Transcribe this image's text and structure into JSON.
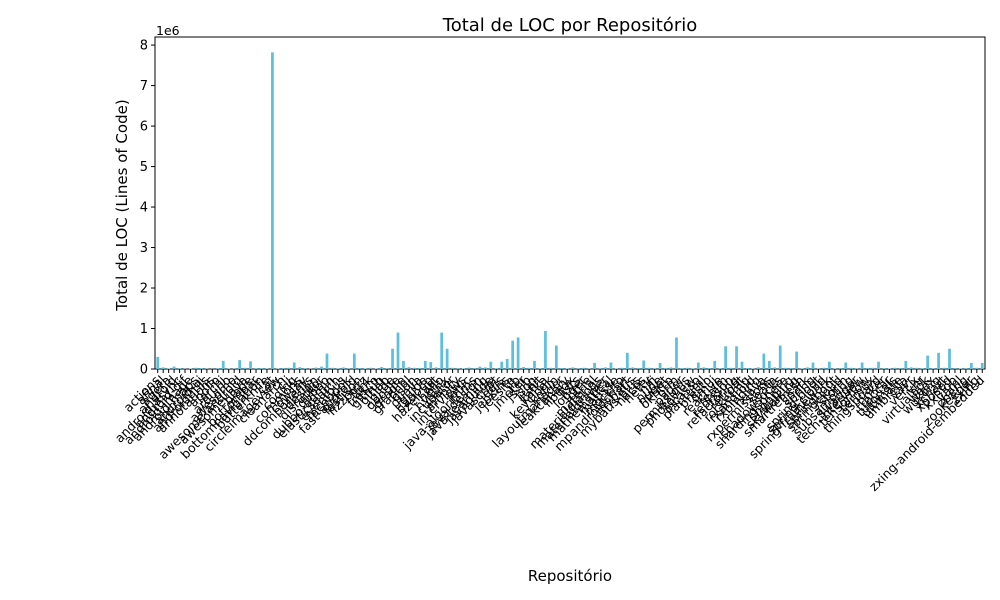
{
  "chart_data": {
    "type": "bar",
    "title": "Total de LOC por Repositório",
    "xlabel": "Repositório",
    "ylabel": "Total de LOC (Lines of Code)",
    "y_offset_text": "1e6",
    "y_scale_divisor": 1000000,
    "ylim": [
      0,
      8200000
    ],
    "yticks": [
      0,
      1,
      2,
      3,
      4,
      5,
      6,
      7,
      8
    ],
    "grid": false,
    "legend": "none",
    "bar_color": "#5bc0de",
    "categories": [
      "actions",
      "afinal",
      "agera",
      "android",
      "android-async",
      "android-gif",
      "android-image",
      "android-maps",
      "android-ui",
      "androidutils",
      "annotations",
      "apollo",
      "archi",
      "arduino",
      "awesome",
      "awesome-android",
      "awesome-java",
      "blade",
      "bottombar",
      "bottomnavigation",
      "butterknife",
      "cat",
      "circleimageview",
      "cleanarch",
      "clj",
      "coding",
      "commons",
      "cowsay",
      "ddcomponents",
      "design",
      "disruptor",
      "dubbo",
      "dubbo-admin",
      "elasticsearch",
      "eventbus",
      "facebook",
      "fast-android",
      "fastjson",
      "fizzbuzz",
      "flink",
      "fresco",
      "github",
      "gitlab",
      "glide",
      "google",
      "gradle",
      "graphql",
      "gson",
      "guava",
      "guide",
      "hadoop",
      "hazelcast",
      "hello",
      "hystrix",
      "incubator",
      "infinity",
      "interviews",
      "ionic",
      "java-algorithms",
      "java-design",
      "java-learning",
      "javaguide",
      "javascript",
      "jedis",
      "jenkins",
      "jeesite",
      "jib",
      "jmeter",
      "js-lib",
      "json",
      "junit",
      "kafka",
      "keycloak",
      "kotlin",
      "layoutmanager",
      "leakcanary",
      "libgdx",
      "lists",
      "logger",
      "lottie",
      "material",
      "materialdialogs",
      "materialdrawer",
      "mathematical",
      "matisse",
      "mockito",
      "mpandroidchart",
      "mybatis",
      "mybatis-plus",
      "nacos",
      "netty",
      "nifi",
      "nude",
      "nuget",
      "okhttp",
      "orm",
      "pager",
      "permissions",
      "photoview",
      "picasso",
      "plantuml",
      "presto",
      "qmui",
      "reactive",
      "realm",
      "redisson",
      "refactoring",
      "retrofit",
      "rocketmq",
      "rxandroid",
      "rxbinding",
      "rxjava",
      "rxpermissions",
      "seata",
      "shadowsocks",
      "shardingsphere",
      "shopping",
      "skywalking",
      "smartrefresh",
      "spark",
      "spring",
      "spring-boot",
      "spring-cloud",
      "spring-framework",
      "springboot",
      "springcloud",
      "storm",
      "subsampling",
      "swagger",
      "tech-interview",
      "tensorflow",
      "termux",
      "thingsboard",
      "tinker",
      "traccar",
      "tutorials",
      "ultimate",
      "umbrella",
      "vavr",
      "vert.x",
      "vhr",
      "virtualapk",
      "weex",
      "wukong",
      "xchart",
      "xposed",
      "xxl-job",
      "yaml",
      "zheng",
      "zookeeper",
      "zxing",
      "zxing-android-embedded"
    ],
    "values": [
      300000,
      40000,
      15000,
      60000,
      20000,
      8000,
      12000,
      30000,
      25000,
      10000,
      5000,
      20000,
      200000,
      15000,
      9000,
      220000,
      30000,
      190000,
      18000,
      22000,
      15000,
      7820000,
      12000,
      25000,
      30000,
      160000,
      45000,
      20000,
      8000,
      35000,
      60000,
      380000,
      30000,
      15000,
      40000,
      20000,
      380000,
      25000,
      15000,
      30000,
      12000,
      50000,
      20000,
      500000,
      900000,
      200000,
      45000,
      30000,
      25000,
      200000,
      170000,
      40000,
      900000,
      500000,
      30000,
      20000,
      15000,
      35000,
      25000,
      60000,
      40000,
      180000,
      20000,
      180000,
      250000,
      700000,
      780000,
      50000,
      30000,
      200000,
      20000,
      940000,
      30000,
      580000,
      25000,
      15000,
      40000,
      20000,
      30000,
      10000,
      150000,
      20000,
      40000,
      160000,
      15000,
      30000,
      400000,
      40000,
      25000,
      210000,
      30000,
      20000,
      150000,
      25000,
      40000,
      780000,
      20000,
      30000,
      15000,
      160000,
      40000,
      25000,
      200000,
      20000,
      560000,
      30000,
      560000,
      180000,
      25000,
      15000,
      40000,
      380000,
      200000,
      40000,
      580000,
      30000,
      25000,
      430000,
      15000,
      40000,
      160000,
      20000,
      30000,
      180000,
      15000,
      25000,
      160000,
      30000,
      20000,
      160000,
      25000,
      30000,
      180000,
      20000,
      15000,
      30000,
      25000,
      200000,
      40000,
      30000,
      20000,
      330000,
      20000,
      400000,
      30000,
      500000,
      25000,
      15000,
      20000,
      150000,
      30000,
      150000
    ]
  }
}
